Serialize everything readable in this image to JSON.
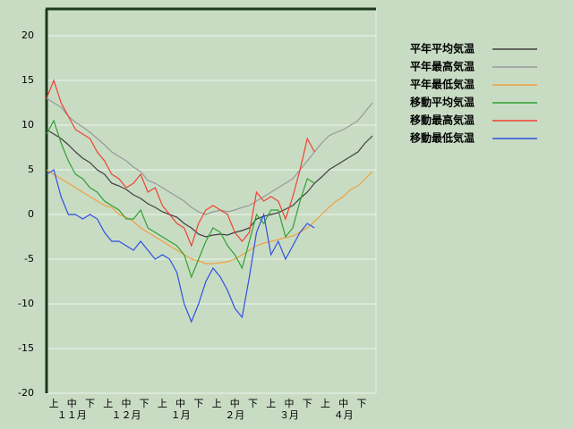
{
  "chart_data": {
    "type": "line",
    "x": [
      0,
      4,
      8,
      12,
      16,
      20,
      24,
      28,
      32,
      36,
      40,
      44,
      48,
      52,
      56,
      60,
      64,
      68,
      72,
      76,
      80,
      84,
      88,
      92,
      96,
      100,
      104,
      108,
      112,
      116,
      120,
      124,
      128,
      132,
      136,
      140,
      144,
      148,
      152,
      156,
      160,
      164,
      168,
      172,
      176,
      180
    ],
    "xlim": [
      0,
      182
    ],
    "xticks": [
      {
        "value": 4,
        "label": "上"
      },
      {
        "value": 14,
        "label": "中"
      },
      {
        "value": 24,
        "label": "下"
      },
      {
        "value": 34,
        "label": "上"
      },
      {
        "value": 44,
        "label": "中"
      },
      {
        "value": 54,
        "label": "下"
      },
      {
        "value": 64,
        "label": "上"
      },
      {
        "value": 74,
        "label": "中"
      },
      {
        "value": 84,
        "label": "下"
      },
      {
        "value": 94,
        "label": "上"
      },
      {
        "value": 104,
        "label": "中"
      },
      {
        "value": 114,
        "label": "下"
      },
      {
        "value": 124,
        "label": "上"
      },
      {
        "value": 134,
        "label": "中"
      },
      {
        "value": 144,
        "label": "下"
      },
      {
        "value": 154,
        "label": "上"
      },
      {
        "value": 164,
        "label": "中"
      },
      {
        "value": 174,
        "label": "下"
      }
    ],
    "months": [
      {
        "value": 14,
        "label": "１１月"
      },
      {
        "value": 44,
        "label": "１２月"
      },
      {
        "value": 74,
        "label": "１月"
      },
      {
        "value": 104,
        "label": "２月"
      },
      {
        "value": 134,
        "label": "３月"
      },
      {
        "value": 164,
        "label": "４月"
      }
    ],
    "ylim": [
      -20,
      23
    ],
    "yticks": [
      -20,
      -15,
      -10,
      -5,
      0,
      5,
      10,
      15,
      20
    ],
    "grid": true,
    "series": [
      {
        "name": "平年平均気温",
        "color": "#404040",
        "values": [
          9.5,
          9,
          8.5,
          7.8,
          7,
          6.3,
          5.8,
          5,
          4.5,
          3.5,
          3.2,
          2.8,
          2.2,
          1.8,
          1.2,
          0.8,
          0.3,
          0,
          -0.3,
          -1,
          -1.5,
          -2.2,
          -2.5,
          -2.3,
          -2.2,
          -2.3,
          -2,
          -1.8,
          -1.5,
          -0.5,
          -0.2,
          0,
          0.2,
          0.6,
          1,
          1.8,
          2.5,
          3.5,
          4.2,
          5,
          5.5,
          6,
          6.5,
          7,
          8,
          8.8
        ]
      },
      {
        "name": "平年最高気温",
        "color": "#999999",
        "values": [
          13,
          12.5,
          12,
          11,
          10.3,
          9.8,
          9.2,
          8.5,
          7.8,
          7,
          6.5,
          6,
          5.3,
          4.8,
          3.8,
          3.5,
          3,
          2.5,
          2,
          1.5,
          0.8,
          0.3,
          0,
          0.3,
          0.5,
          0.3,
          0.5,
          0.8,
          1,
          1.5,
          2,
          2.5,
          3,
          3.5,
          4,
          5,
          6,
          7,
          8,
          8.8,
          9.2,
          9.5,
          10,
          10.5,
          11.5,
          12.5
        ]
      },
      {
        "name": "平年最低気温",
        "color": "#f0a040",
        "values": [
          5,
          4.5,
          4,
          3.5,
          3,
          2.5,
          2,
          1.5,
          1,
          0.8,
          0,
          -0.3,
          -0.8,
          -1.5,
          -2,
          -2.5,
          -3,
          -3.5,
          -4,
          -4.5,
          -5,
          -5.2,
          -5.5,
          -5.5,
          -5.4,
          -5.3,
          -5,
          -4.5,
          -4,
          -3.5,
          -3.2,
          -3,
          -2.8,
          -2.6,
          -2.4,
          -2,
          -1.5,
          -0.8,
          0,
          0.8,
          1.5,
          2,
          2.8,
          3.2,
          4,
          4.8
        ]
      },
      {
        "name": "移動平均気温",
        "color": "#30a030",
        "values": [
          9,
          10.5,
          8,
          6,
          4.5,
          4,
          3,
          2.5,
          1.5,
          1,
          0.5,
          -0.5,
          -0.5,
          0.5,
          -1.5,
          -2,
          -2.5,
          -3,
          -3.5,
          -4.5,
          -7,
          -5,
          -3,
          -1.5,
          -2,
          -3.5,
          -4.5,
          -6,
          -3,
          0,
          -1,
          0.5,
          0.5,
          -2.5,
          -1.5,
          1.5,
          4,
          3.5,
          null,
          null,
          null,
          null,
          null,
          null,
          null,
          null
        ]
      },
      {
        "name": "移動最高気温",
        "color": "#f04030",
        "values": [
          13,
          15,
          12.5,
          11,
          9.5,
          9,
          8.5,
          7,
          6,
          4.5,
          4,
          3,
          3.5,
          4.5,
          2.5,
          3,
          1,
          0,
          -1,
          -1.5,
          -3.5,
          -1,
          0.5,
          1,
          0.5,
          0,
          -2,
          -3,
          -2,
          2.5,
          1.5,
          2,
          1.5,
          -0.5,
          2,
          5,
          8.5,
          7,
          null,
          null,
          null,
          null,
          null,
          null,
          null,
          null
        ]
      },
      {
        "name": "移動最低気温",
        "color": "#3050e0",
        "values": [
          4.5,
          5,
          2,
          0,
          0,
          -0.5,
          0,
          -0.5,
          -2,
          -3,
          -3,
          -3.5,
          -4,
          -3,
          -4,
          -5,
          -4.5,
          -5,
          -6.5,
          -10,
          -12,
          -10,
          -7.5,
          -6,
          -7,
          -8.5,
          -10.5,
          -11.5,
          -7,
          -2,
          0,
          -4.5,
          -3,
          -5,
          -3.5,
          -2,
          -1,
          -1.5,
          null,
          null,
          null,
          null,
          null,
          null,
          null,
          null
        ]
      }
    ]
  }
}
